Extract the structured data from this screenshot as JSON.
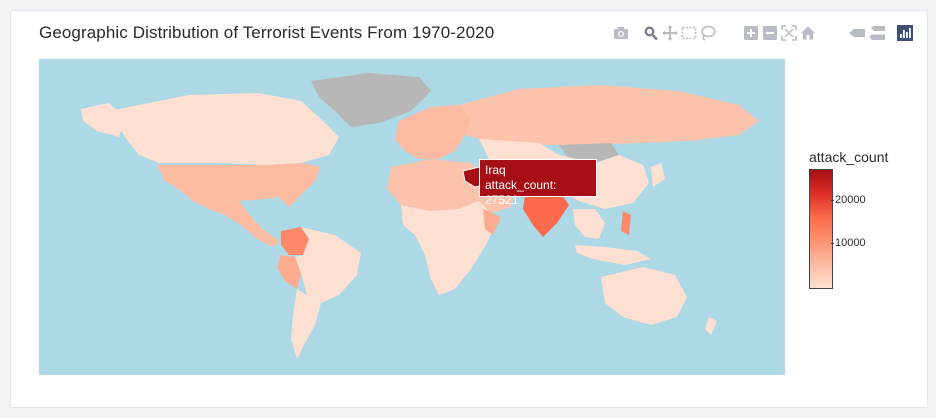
{
  "chart_data": {
    "type": "choropleth",
    "title": "Geographic Distribution of Terrorist Events From 1970-2020",
    "value_field": "attack_count",
    "colorscale": [
      "#fee0d2",
      "#fcbba1",
      "#fc9272",
      "#fb6a4a",
      "#de2d26",
      "#a50f15"
    ],
    "colorbar": {
      "title": "attack_count",
      "ticks": [
        10000,
        20000
      ],
      "tick_labels": [
        "10000",
        "20000"
      ],
      "range": [
        0,
        27521
      ]
    },
    "no_data_color": "#b7b7b7",
    "ocean_color": "#add8e6",
    "hovered": {
      "country": "Iraq",
      "label": "attack_count: 27521",
      "attack_count": 27521
    }
  },
  "modebar": {
    "icons": [
      "camera-icon",
      "zoom-icon",
      "pan-icon",
      "box-select-icon",
      "lasso-icon",
      "zoom-in-icon",
      "zoom-out-icon",
      "autoscale-icon",
      "home-icon",
      "hover-closest-icon",
      "hover-compare-icon",
      "plotly-logo-icon"
    ]
  },
  "colors": {
    "accent": "#a50f15",
    "modebar_icon": "#b8bcc4",
    "plotly_logo": "#3f4f75"
  }
}
